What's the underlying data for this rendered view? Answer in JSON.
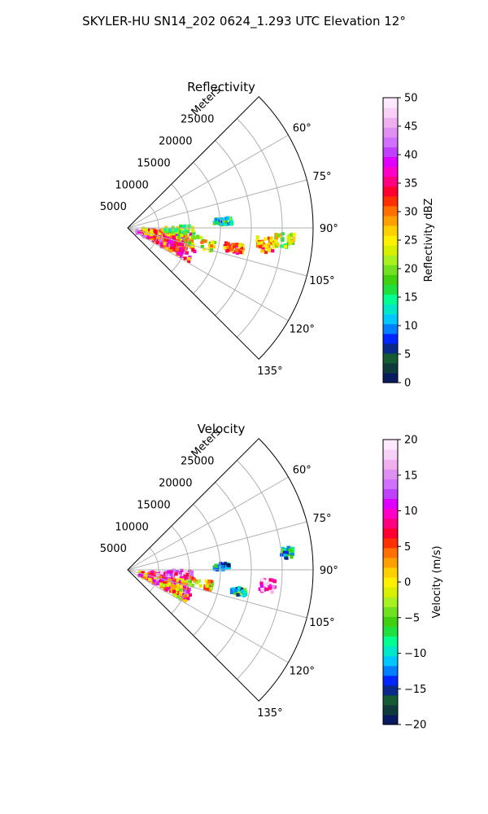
{
  "figure": {
    "title": "SKYLER-HU  SN14_202  0624_1.293 UTC Elevation 12°"
  },
  "chart_data": [
    {
      "type": "heatmap",
      "projection": "polar-sector",
      "title": "Reflectivity",
      "radial_label": "Meters",
      "radial_ticks": [
        5000,
        10000,
        15000,
        20000,
        25000
      ],
      "radial_tick_labels": [
        "5000",
        "10000",
        "15000",
        "20000",
        "25000"
      ],
      "radial_max": 30000,
      "azimuth_range_deg": [
        45,
        135
      ],
      "azimuth_ticks": [
        60,
        75,
        90,
        105,
        120,
        135
      ],
      "azimuth_tick_labels": [
        "60°",
        "75°",
        "90°",
        "105°",
        "120°",
        "135°"
      ],
      "grid": true,
      "colorbar": {
        "label": "Reflectivity dBZ",
        "min": 0,
        "max": 50,
        "ticks": [
          0,
          5,
          10,
          15,
          20,
          25,
          30,
          35,
          40,
          45,
          50
        ],
        "tick_labels": [
          "0",
          "5",
          "10",
          "15",
          "20",
          "25",
          "30",
          "35",
          "40",
          "45",
          "50"
        ],
        "colors": [
          "#0a1a5e",
          "#0f3a3a",
          "#145a32",
          "#0a2a8a",
          "#0026ff",
          "#0080ff",
          "#00c8ff",
          "#00e8c8",
          "#00ff90",
          "#20e040",
          "#40d010",
          "#70e020",
          "#a8f020",
          "#d8f000",
          "#fff000",
          "#ffd000",
          "#ffa000",
          "#ff7000",
          "#ff3000",
          "#ff0030",
          "#ff0080",
          "#ff00c8",
          "#e000ff",
          "#c040ff",
          "#d070ff",
          "#e090f0",
          "#f0b0f0",
          "#f8d0f8",
          "#fde8fd"
        ]
      },
      "echo_regions": [
        {
          "az": [
            100,
            118
          ],
          "r": [
            1500,
            9000
          ],
          "value": 40
        },
        {
          "az": [
            95,
            115
          ],
          "r": [
            3000,
            10500
          ],
          "value": 35
        },
        {
          "az": [
            92,
            108
          ],
          "r": [
            2500,
            9500
          ],
          "value": 30
        },
        {
          "az": [
            106,
            119
          ],
          "r": [
            5000,
            11500
          ],
          "value": 33
        },
        {
          "az": [
            97,
            106
          ],
          "r": [
            8000,
            14500
          ],
          "value": 24
        },
        {
          "az": [
            88,
            96
          ],
          "r": [
            6000,
            11000
          ],
          "value": 20
        },
        {
          "az": [
            98,
            103
          ],
          "r": [
            16000,
            19000
          ],
          "value": 30
        },
        {
          "az": [
            94,
            100
          ],
          "r": [
            21000,
            24000
          ],
          "value": 28
        },
        {
          "az": [
            84,
            88
          ],
          "r": [
            14000,
            17000
          ],
          "value": 15
        },
        {
          "az": [
            92,
            97
          ],
          "r": [
            24000,
            27000
          ],
          "value": 22
        }
      ]
    },
    {
      "type": "heatmap",
      "projection": "polar-sector",
      "title": "Velocity",
      "radial_label": "Meters",
      "radial_ticks": [
        5000,
        10000,
        15000,
        20000,
        25000
      ],
      "radial_tick_labels": [
        "5000",
        "10000",
        "15000",
        "20000",
        "25000"
      ],
      "radial_max": 30000,
      "azimuth_range_deg": [
        45,
        135
      ],
      "azimuth_ticks": [
        60,
        75,
        90,
        105,
        120,
        135
      ],
      "azimuth_tick_labels": [
        "60°",
        "75°",
        "90°",
        "105°",
        "120°",
        "135°"
      ],
      "grid": true,
      "colorbar": {
        "label": "Velocity (m/s)",
        "min": -20,
        "max": 20,
        "ticks": [
          -20,
          -15,
          -10,
          -5,
          0,
          5,
          10,
          15,
          20
        ],
        "tick_labels": [
          "−20",
          "−15",
          "−10",
          "−5",
          "0",
          "5",
          "10",
          "15",
          "20"
        ],
        "colors": [
          "#0a1a5e",
          "#0f3a3a",
          "#145a32",
          "#0a2a8a",
          "#0026ff",
          "#0080ff",
          "#00c8ff",
          "#00e8c8",
          "#00ff90",
          "#20e040",
          "#40d010",
          "#70e020",
          "#a8f020",
          "#d8f000",
          "#fff000",
          "#ffd000",
          "#ffa000",
          "#ff7000",
          "#ff3000",
          "#ff0030",
          "#ff0080",
          "#ff00c8",
          "#e000ff",
          "#c040ff",
          "#d070ff",
          "#e090f0",
          "#f0b0f0",
          "#f8d0f8",
          "#fde8fd"
        ]
      },
      "echo_regions": [
        {
          "az": [
            95,
            118
          ],
          "r": [
            3000,
            10500
          ],
          "value": 10
        },
        {
          "az": [
            100,
            117
          ],
          "r": [
            2000,
            9000
          ],
          "value": 5
        },
        {
          "az": [
            90,
            98
          ],
          "r": [
            5500,
            10500
          ],
          "value": 13
        },
        {
          "az": [
            106,
            119
          ],
          "r": [
            6000,
            11000
          ],
          "value": 3
        },
        {
          "az": [
            97,
            104
          ],
          "r": [
            9000,
            14000
          ],
          "value": 2
        },
        {
          "az": [
            86,
            90
          ],
          "r": [
            14000,
            16500
          ],
          "value": -12
        },
        {
          "az": [
            99,
            103
          ],
          "r": [
            17000,
            19500
          ],
          "value": -9
        },
        {
          "az": [
            94,
            99
          ],
          "r": [
            21500,
            24000
          ],
          "value": 14
        },
        {
          "az": [
            82,
            86
          ],
          "r": [
            25000,
            27000
          ],
          "value": -10
        }
      ]
    }
  ]
}
